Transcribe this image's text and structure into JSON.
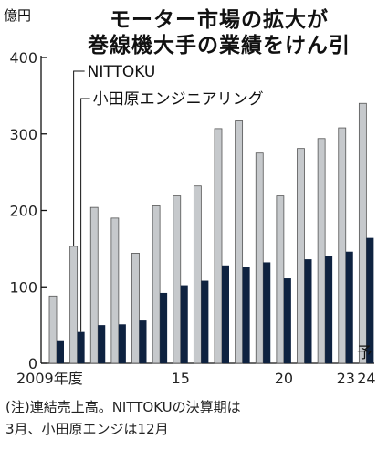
{
  "title_line1": "モーター市場の拡大が",
  "title_line2": "巻線機大手の業績をけん引",
  "unit_label": "億円",
  "note_line1": "(注)連結売上高。NITTOKUの決算期は",
  "note_line2": "3月、小田原エンジは12月",
  "forecast_label": "予",
  "chart_data": {
    "type": "bar",
    "title": "モーター市場の拡大が巻線機大手の業績をけん引",
    "ylabel": "億円",
    "ylim": [
      0,
      400
    ],
    "yticks": [
      0,
      100,
      200,
      300,
      400
    ],
    "grid": false,
    "legend_placement": "top-left",
    "categories": [
      "2009",
      "2010",
      "2011",
      "2012",
      "2013",
      "2014",
      "2015",
      "2016",
      "2017",
      "2018",
      "2019",
      "2020",
      "2021",
      "2022",
      "2023",
      "2024"
    ],
    "x_tick_labels": [
      {
        "category": "2009",
        "label": "2009年度"
      },
      {
        "category": "2015",
        "label": "15"
      },
      {
        "category": "2020",
        "label": "20"
      },
      {
        "category": "2023",
        "label": "23"
      },
      {
        "category": "2024",
        "label": "24"
      }
    ],
    "series": [
      {
        "name": "NITTOKU",
        "color": "#c6c9cc",
        "values": [
          88,
          153,
          204,
          190,
          144,
          206,
          219,
          232,
          307,
          317,
          275,
          219,
          281,
          294,
          308,
          340
        ]
      },
      {
        "name": "小田原エンジニアリング",
        "color": "#0e2240",
        "values": [
          29,
          41,
          50,
          51,
          56,
          92,
          102,
          108,
          128,
          126,
          132,
          111,
          136,
          140,
          146,
          164
        ]
      }
    ]
  }
}
